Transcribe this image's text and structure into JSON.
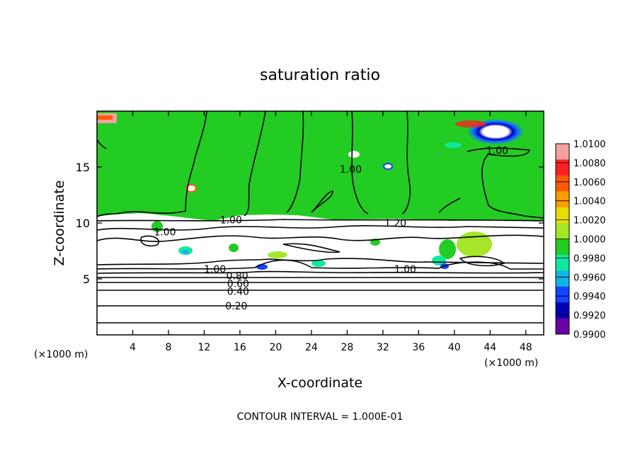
{
  "chart_data": {
    "type": "heatmap",
    "title": "saturation ratio",
    "xlabel": "X-coordinate",
    "ylabel": "Z-coordinate",
    "x_unit_left": "(×1000 m)",
    "x_unit_right": "(×1000 m)",
    "xlim": [
      0,
      50
    ],
    "ylim": [
      0,
      20
    ],
    "x_ticks": [
      4,
      8,
      12,
      16,
      20,
      24,
      28,
      32,
      36,
      40,
      44,
      48
    ],
    "y_ticks": [
      5,
      10,
      15
    ],
    "grid": false,
    "footer": "CONTOUR INTERVAL = 1.000E-01",
    "colorbar": {
      "labels": [
        "1.0100",
        "1.0080",
        "1.0060",
        "1.0040",
        "1.0020",
        "1.0000",
        "0.9980",
        "0.9960",
        "0.9940",
        "0.9920",
        "0.9900"
      ],
      "colors": [
        "#f2a0a0",
        "#ff2020",
        "#ff5a00",
        "#ff9a00",
        "#e6dc00",
        "#a6e62a",
        "#22cc22",
        "#10e8a0",
        "#12b4e6",
        "#1444ff",
        "#0000b4",
        "#6a00a6"
      ]
    },
    "contour_labels": [
      {
        "text": "0.20",
        "x": 15.6,
        "z": 2.6
      },
      {
        "text": "0.40",
        "x": 15.8,
        "z": 3.9
      },
      {
        "text": "0.60",
        "x": 15.8,
        "z": 4.6
      },
      {
        "text": "0.80",
        "x": 15.7,
        "z": 5.3
      },
      {
        "text": "1.00",
        "x": 13.2,
        "z": 5.9
      },
      {
        "text": "1.00",
        "x": 34.5,
        "z": 5.9
      },
      {
        "text": "1.00",
        "x": 7.6,
        "z": 9.2
      },
      {
        "text": "1.00",
        "x": 15.0,
        "z": 10.3
      },
      {
        "text": "1.20",
        "x": 33.4,
        "z": 10.0
      },
      {
        "text": "1.00",
        "x": 28.4,
        "z": 14.8
      },
      {
        "text": "1.00",
        "x": 44.8,
        "z": 16.5
      }
    ]
  }
}
